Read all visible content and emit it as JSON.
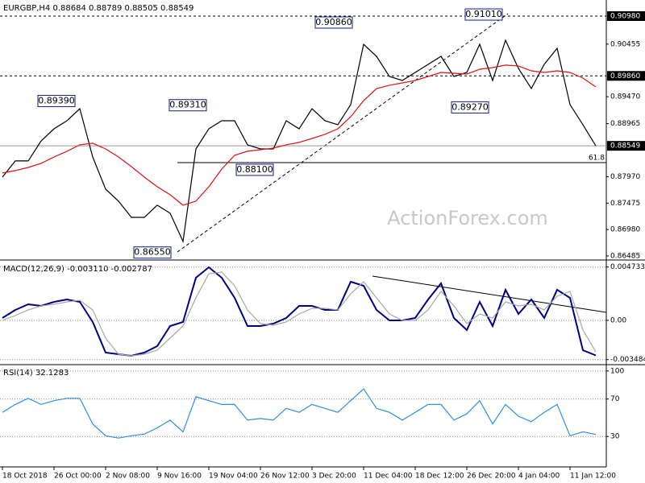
{
  "chart_data": [
    {
      "type": "line",
      "title": "EURGBP,H4  0.88684 0.88789 0.88505 0.88549",
      "watermark": "ActionForex.com",
      "ylim": [
        0.86425,
        0.91282
      ],
      "yticks": [
        {
          "value": 0.86485,
          "label": "0.86485"
        },
        {
          "value": 0.8698,
          "label": "0.86980"
        },
        0.87475,
        {
          "value": 0.8797,
          "label": "0.87970"
        },
        0.88965,
        {
          "value": 0.8947,
          "label": "0.89470"
        },
        0.90455
      ],
      "series": [
        {
          "color": "#000000",
          "values": [
            0.87964,
            0.88266,
            0.88266,
            0.88643,
            0.88869,
            0.8902,
            0.89246,
            0.88341,
            0.87738,
            0.87512,
            0.8721,
            0.8721,
            0.87437,
            0.87286,
            0.86758,
            0.88492,
            0.88869,
            0.8902,
            0.8902,
            0.88568,
            0.88492,
            0.88492,
            0.8902,
            0.88869,
            0.89246,
            0.8902,
            0.88945,
            0.89322,
            0.90453,
            0.90226,
            0.89849,
            0.89774,
            0.89925,
            0.90076,
            0.90226,
            0.89849,
            0.89925,
            0.90453,
            0.89774,
            0.90528,
            0.9,
            0.89623,
            0.90076,
            0.90377,
            0.89322,
            0.88945,
            0.88549
          ]
        },
        {
          "color": "#e01010",
          "values": [
            0.8804,
            0.88085,
            0.88145,
            0.88221,
            0.88341,
            0.88447,
            0.88568,
            0.88598,
            0.88492,
            0.88341,
            0.8816,
            0.87964,
            0.87783,
            0.87633,
            0.87437,
            0.87512,
            0.87783,
            0.88115,
            0.88372,
            0.88447,
            0.88477,
            0.88507,
            0.88568,
            0.88613,
            0.88688,
            0.88764,
            0.88869,
            0.89095,
            0.89397,
            0.89623,
            0.89684,
            0.89729,
            0.89774,
            0.89849,
            0.89925,
            0.8991,
            0.89895,
            0.89985,
            0.90015,
            0.90061,
            0.90045,
            0.89955,
            0.89925,
            0.89955,
            0.89925,
            0.89819,
            0.89653
          ]
        }
      ],
      "levels": [
        {
          "value": 0.9098,
          "label": "0.90980",
          "dash": true
        },
        {
          "value": 0.8986,
          "label": "0.89860",
          "dash": true
        },
        {
          "value": 0.88549,
          "label": "0.88549",
          "dash": false
        }
      ],
      "fib": {
        "value": 0.88236,
        "label": "61.8"
      },
      "annotations": [
        {
          "value": 0.8939,
          "label": "0.89390"
        },
        {
          "value": 0.8655,
          "label": "0.86550"
        },
        {
          "value": 0.8931,
          "label": "0.89310"
        },
        {
          "value": 0.881,
          "label": "0.88100"
        },
        {
          "value": 0.9086,
          "label": "0.90860"
        },
        {
          "value": 0.9101,
          "label": "0.91010"
        },
        {
          "value": 0.8927,
          "label": "0.89270"
        }
      ]
    },
    {
      "type": "line",
      "title": "MACD(12,26,9) -0.003110 -0.002787",
      "ylim": [
        -0.00386,
        0.00514
      ],
      "yticks": [
        -0.003484,
        {
          "value": 0,
          "label": "0.00"
        },
        0.004733
      ],
      "series": [
        {
          "color": "#000080",
          "values": [
            0.000214,
            0.000929,
            0.001429,
            0.001286,
            0.001643,
            0.001857,
            0.001643,
            -0.000143,
            -0.002857,
            -0.003,
            -0.003143,
            -0.002857,
            -0.002286,
            -0.0005,
            -0.000143,
            0.003786,
            0.004714,
            0.003786,
            0.002,
            -0.0005,
            -0.0005,
            -0.000286,
            0.000214,
            0.001286,
            0.001286,
            0.000929,
            0.000929,
            0.003429,
            0.003071,
            0.000929,
            0,
            0,
            0.000214,
            0.001857,
            0.003286,
            0.000214,
            -0.000857,
            0.001643,
            -0.0005,
            0.002714,
            0.000571,
            0.001857,
            0.000214,
            0.002714,
            0.002,
            -0.002643,
            -0.00311
          ]
        },
        {
          "color": "#a8a8a8",
          "values": [
            0,
            0.000429,
            0.000929,
            0.001286,
            0.001429,
            0.001643,
            0.001786,
            0.000929,
            -0.001571,
            -0.003,
            -0.003143,
            -0.003,
            -0.002643,
            -0.001571,
            -0.0005,
            0.002,
            0.004143,
            0.004286,
            0.003071,
            0.000929,
            -0.000286,
            -0.000429,
            -0.000143,
            0.000571,
            0.001071,
            0.001071,
            0.000929,
            0.002357,
            0.003429,
            0.002,
            0.000571,
            0,
            0,
            0.000929,
            0.002571,
            0.001286,
            -0.000286,
            0.000571,
            0.000214,
            0.001643,
            0.001286,
            0.001429,
            0.000929,
            0.002143,
            0.002571,
            -0.000857,
            -0.002787
          ]
        }
      ]
    },
    {
      "type": "line",
      "title": "RSI(14) 32.1283",
      "ylim": [
        -2.5,
        105
      ],
      "yticks": [
        30,
        70,
        100
      ],
      "categories": [
        "18 Oct 2018",
        null,
        null,
        null,
        "26 Oct 00:00",
        null,
        null,
        null,
        "2 Nov 08:00",
        null,
        null,
        null,
        "9 Nov 16:00",
        null,
        null,
        null,
        "19 Nov 04:00",
        null,
        null,
        null,
        "26 Nov 12:00",
        null,
        null,
        null,
        "3 Dec 20:00",
        null,
        null,
        null,
        "11 Dec 04:00",
        null,
        null,
        null,
        "18 Dec 12:00",
        null,
        null,
        null,
        "26 Dec 20:00",
        null,
        null,
        null,
        "4 Jan 04:00",
        null,
        null,
        null,
        "11 Jan 12:00",
        null,
        null
      ],
      "series": [
        {
          "color": "#2f8fdc",
          "values": [
            55.8,
            64.2,
            70.8,
            64.2,
            68.3,
            70.8,
            70.8,
            43.3,
            30.8,
            28.3,
            30.8,
            32.5,
            39.2,
            47.5,
            35,
            72.5,
            68.3,
            64.2,
            64.2,
            47.5,
            49.2,
            47.5,
            60,
            55.8,
            64.2,
            60,
            55.8,
            68.3,
            80.8,
            60,
            55.8,
            47.5,
            55.8,
            64.2,
            64.2,
            47.5,
            54.2,
            68.3,
            43.3,
            64.2,
            51.7,
            45.8,
            55.8,
            64.2,
            30.8,
            35,
            32.13
          ]
        }
      ]
    }
  ]
}
